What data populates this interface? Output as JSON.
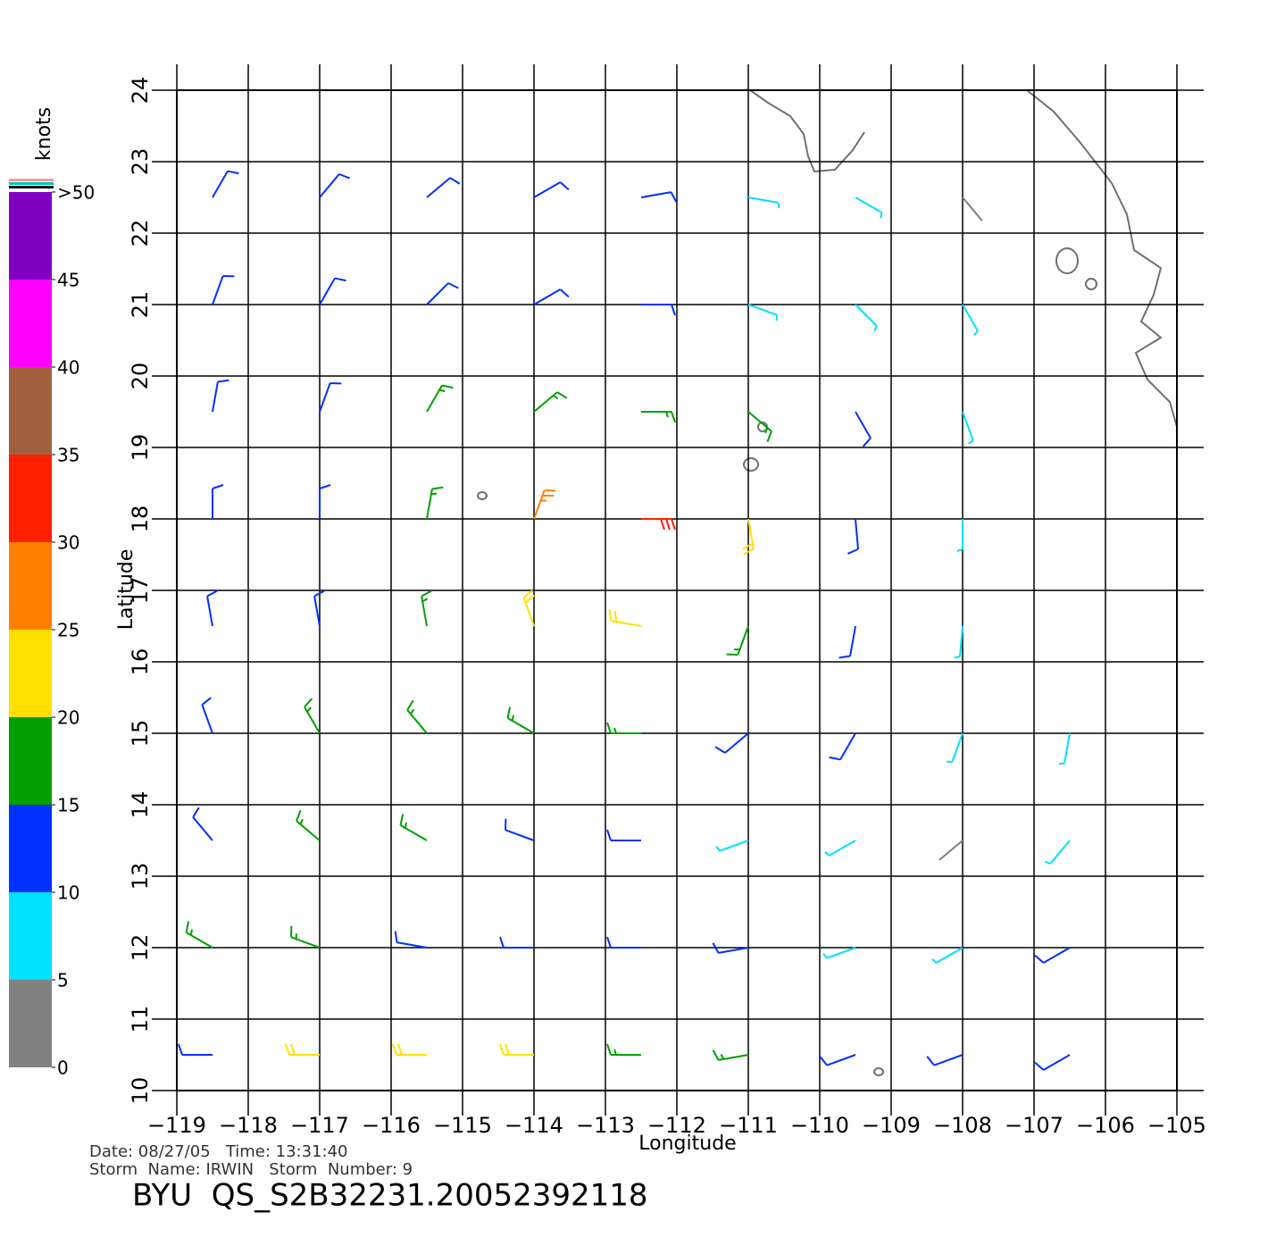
{
  "map": {
    "xlabel": "Longitude",
    "ylabel": "Latitude",
    "xlim": [
      -119,
      -105
    ],
    "ylim": [
      10,
      24
    ],
    "xticks": [
      {
        "value": -119,
        "label": "−119"
      },
      {
        "value": -118,
        "label": "−118"
      },
      {
        "value": -117,
        "label": "−117"
      },
      {
        "value": -116,
        "label": "−116"
      },
      {
        "value": -115,
        "label": "−115"
      },
      {
        "value": -114,
        "label": "−114"
      },
      {
        "value": -113,
        "label": "−113"
      },
      {
        "value": -112,
        "label": "−112"
      },
      {
        "value": -111,
        "label": "−111"
      },
      {
        "value": -110,
        "label": "−110"
      },
      {
        "value": -109,
        "label": "−109"
      },
      {
        "value": -108,
        "label": "−108"
      },
      {
        "value": -107,
        "label": "−107"
      },
      {
        "value": -106,
        "label": "−106"
      },
      {
        "value": -105,
        "label": "−105"
      }
    ],
    "yticks": [
      10,
      11,
      12,
      13,
      14,
      15,
      16,
      17,
      18,
      19,
      20,
      21,
      22,
      23,
      24
    ],
    "colorbar": {
      "title": "knots",
      "ticks": [
        0,
        5,
        10,
        15,
        20,
        25,
        30,
        35,
        40,
        45,
        {
          "value": 50,
          "label": ">50"
        }
      ],
      "colors": [
        "#808080",
        "#00e0ff",
        "#0030ff",
        "#00a000",
        "#ffe000",
        "#ff8000",
        "#ff2000",
        "#a06040",
        "#ff00ff",
        "#8000c0"
      ]
    },
    "wind": {
      "lons": [
        -118.5,
        -117,
        -115.5,
        -114,
        -112.5,
        -111,
        -109.5,
        -108,
        -106.5
      ],
      "lats": [
        22.5,
        21,
        19.5,
        18,
        16.5,
        15,
        13.5,
        12,
        10.5
      ],
      "speed": [
        [
          12,
          12,
          12,
          12,
          11,
          8,
          5,
          4,
          null
        ],
        [
          12,
          12,
          13,
          13,
          12,
          8,
          6,
          5,
          null
        ],
        [
          12,
          13,
          15,
          17,
          18,
          16,
          12,
          8,
          null
        ],
        [
          12,
          14,
          17,
          25,
          32,
          22,
          14,
          8,
          null
        ],
        [
          12,
          14,
          17,
          22,
          22,
          18,
          13,
          8,
          null
        ],
        [
          12,
          15,
          17,
          17,
          17,
          13,
          10,
          6,
          5
        ],
        [
          12,
          15,
          16,
          14,
          11,
          9,
          7,
          4,
          6
        ],
        [
          16,
          15,
          14,
          13,
          12,
          10,
          9,
          8,
          10
        ],
        [
          13,
          22,
          23,
          20,
          18,
          15,
          12,
          11,
          11
        ]
      ],
      "direction": [
        [
          30,
          40,
          50,
          60,
          80,
          100,
          120,
          140,
          null
        ],
        [
          20,
          30,
          45,
          60,
          90,
          110,
          135,
          150,
          null
        ],
        [
          10,
          20,
          30,
          50,
          90,
          130,
          150,
          160,
          null
        ],
        [
          360,
          360,
          10,
          20,
          90,
          170,
          175,
          180,
          null
        ],
        [
          350,
          350,
          350,
          340,
          280,
          200,
          190,
          185,
          null
        ],
        [
          340,
          330,
          320,
          300,
          270,
          230,
          210,
          200,
          190
        ],
        [
          320,
          310,
          300,
          290,
          270,
          250,
          240,
          230,
          220
        ],
        [
          300,
          290,
          280,
          270,
          270,
          260,
          250,
          240,
          240
        ],
        [
          270,
          270,
          270,
          270,
          270,
          260,
          250,
          250,
          240
        ]
      ]
    },
    "info": {
      "line1": "Date: 08/27/05   Time: 13:31:40",
      "line2": "Storm  Name: IRWIN   Storm  Number: 9",
      "title": "BYU  QS_S2B32231.20052392118"
    }
  }
}
